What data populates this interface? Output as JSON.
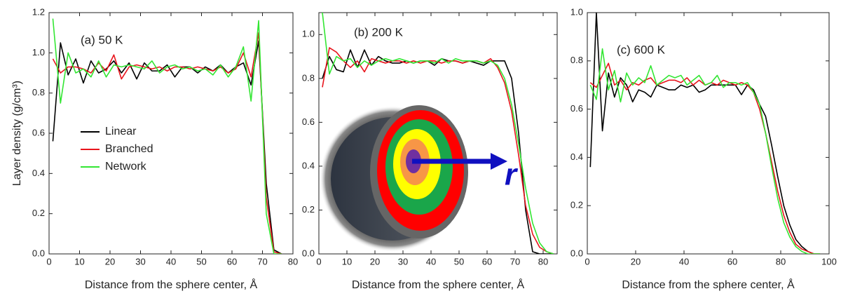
{
  "chart_data": [
    {
      "type": "line",
      "panel_label": "(a) 50 K",
      "xlabel": "Distance from the sphere center, Å",
      "ylabel": "Layer density (g/cm³)",
      "xlim": [
        0,
        80
      ],
      "xticks": [
        0,
        10,
        20,
        30,
        40,
        50,
        60,
        70,
        80
      ],
      "ylim": [
        0,
        1.2
      ],
      "yticks": [
        {
          "value": 0,
          "label": "0.0"
        },
        0.2,
        0.4,
        0.6,
        0.8,
        {
          "value": 1,
          "label": "1.0"
        },
        1.2
      ],
      "legend": "center-left",
      "x": [
        1.25,
        3.75,
        6.25,
        8.75,
        11.25,
        13.75,
        16.25,
        18.75,
        21.25,
        23.75,
        26.25,
        28.75,
        31.25,
        33.75,
        36.25,
        38.75,
        41.25,
        43.75,
        46.25,
        48.75,
        51.25,
        53.75,
        56.25,
        58.75,
        61.25,
        63.75,
        66.25,
        68.75,
        71.25,
        73.75,
        76.25
      ],
      "series": [
        {
          "name": "Linear",
          "color": "#000000",
          "values": [
            0.56,
            1.05,
            0.89,
            0.97,
            0.85,
            0.96,
            0.9,
            0.92,
            0.96,
            0.9,
            0.95,
            0.87,
            0.95,
            0.91,
            0.91,
            0.94,
            0.88,
            0.93,
            0.93,
            0.9,
            0.93,
            0.91,
            0.94,
            0.9,
            0.93,
            0.95,
            0.84,
            1.06,
            0.35,
            0.02,
            0.0
          ]
        },
        {
          "name": "Branched",
          "color": "#e8141c",
          "values": [
            0.97,
            0.9,
            0.93,
            0.93,
            0.92,
            0.9,
            0.95,
            0.91,
            0.99,
            0.87,
            0.93,
            0.94,
            0.93,
            0.92,
            0.93,
            0.91,
            0.93,
            0.93,
            0.92,
            0.93,
            0.92,
            0.91,
            0.93,
            0.9,
            0.92,
            1.0,
            0.88,
            1.1,
            0.28,
            0.01,
            0.0
          ]
        },
        {
          "name": "Network",
          "color": "#33e633",
          "values": [
            1.17,
            0.75,
            1.0,
            0.9,
            0.92,
            0.88,
            0.96,
            0.88,
            0.94,
            0.93,
            0.94,
            0.93,
            0.92,
            0.96,
            0.9,
            0.93,
            0.94,
            0.92,
            0.93,
            0.91,
            0.92,
            0.89,
            0.94,
            0.88,
            0.93,
            1.03,
            0.76,
            1.16,
            0.2,
            0.0,
            0.0
          ]
        }
      ]
    },
    {
      "type": "line",
      "panel_label": "(b) 200 K",
      "xlabel": "Distance from the sphere center, Å",
      "annotation": "r",
      "xlim": [
        0,
        85
      ],
      "xticks": [
        0,
        10,
        20,
        30,
        40,
        50,
        60,
        70,
        80
      ],
      "ylim": [
        0,
        1.1
      ],
      "yticks": [
        {
          "value": 0,
          "label": "0.0"
        },
        0.2,
        0.4,
        0.6,
        0.8,
        {
          "value": 1,
          "label": "1.0"
        }
      ],
      "x": [
        1.25,
        3.75,
        6.25,
        8.75,
        11.25,
        13.75,
        16.25,
        18.75,
        21.25,
        23.75,
        26.25,
        28.75,
        31.25,
        33.75,
        36.25,
        38.75,
        41.25,
        43.75,
        46.25,
        48.75,
        51.25,
        53.75,
        56.25,
        58.75,
        61.25,
        63.75,
        66.25,
        68.75,
        71.25,
        73.75,
        76.25,
        78.75,
        81.25,
        83.75
      ],
      "series": [
        {
          "color": "#000000",
          "values": [
            0.8,
            0.9,
            0.84,
            0.83,
            0.93,
            0.85,
            0.93,
            0.86,
            0.9,
            0.88,
            0.87,
            0.87,
            0.88,
            0.87,
            0.88,
            0.88,
            0.86,
            0.89,
            0.88,
            0.88,
            0.87,
            0.88,
            0.87,
            0.86,
            0.88,
            0.88,
            0.88,
            0.8,
            0.55,
            0.2,
            0.01,
            0.0,
            0.0,
            0.0
          ]
        },
        {
          "color": "#e8141c",
          "values": [
            0.76,
            0.94,
            0.92,
            0.88,
            0.85,
            0.88,
            0.83,
            0.89,
            0.88,
            0.87,
            0.88,
            0.88,
            0.87,
            0.88,
            0.87,
            0.88,
            0.88,
            0.87,
            0.88,
            0.88,
            0.87,
            0.88,
            0.88,
            0.87,
            0.89,
            0.85,
            0.78,
            0.65,
            0.45,
            0.22,
            0.09,
            0.03,
            0.01,
            0.0
          ]
        },
        {
          "color": "#33e633",
          "values": [
            1.1,
            0.82,
            0.9,
            0.88,
            0.89,
            0.85,
            0.88,
            0.86,
            0.88,
            0.89,
            0.88,
            0.89,
            0.88,
            0.87,
            0.88,
            0.88,
            0.87,
            0.89,
            0.87,
            0.89,
            0.88,
            0.88,
            0.88,
            0.87,
            0.88,
            0.86,
            0.8,
            0.68,
            0.5,
            0.3,
            0.14,
            0.05,
            0.01,
            0.0
          ]
        }
      ]
    },
    {
      "type": "line",
      "panel_label": "(c) 600 K",
      "xlabel": "Distance from the sphere center, Å",
      "xlim": [
        0,
        100
      ],
      "xticks": [
        0,
        20,
        40,
        60,
        80,
        100
      ],
      "ylim": [
        0,
        1
      ],
      "yticks": [
        {
          "value": 0,
          "label": "0.0"
        },
        0.2,
        0.4,
        0.6,
        0.8,
        {
          "value": 1,
          "label": "1.0"
        }
      ],
      "x": [
        1.25,
        3.75,
        6.25,
        8.75,
        11.25,
        13.75,
        16.25,
        18.75,
        21.25,
        23.75,
        26.25,
        28.75,
        31.25,
        33.75,
        36.25,
        38.75,
        41.25,
        43.75,
        46.25,
        48.75,
        51.25,
        53.75,
        56.25,
        58.75,
        61.25,
        63.75,
        66.25,
        68.75,
        71.25,
        73.75,
        76.25,
        78.75,
        81.25,
        83.75,
        86.25,
        88.75,
        91.25,
        93.75,
        96.25
      ],
      "series": [
        {
          "color": "#000000",
          "values": [
            0.36,
            1.0,
            0.51,
            0.75,
            0.65,
            0.73,
            0.7,
            0.63,
            0.68,
            0.67,
            0.65,
            0.7,
            0.69,
            0.68,
            0.68,
            0.7,
            0.69,
            0.7,
            0.67,
            0.68,
            0.7,
            0.7,
            0.7,
            0.7,
            0.7,
            0.66,
            0.7,
            0.68,
            0.62,
            0.57,
            0.45,
            0.32,
            0.2,
            0.12,
            0.06,
            0.03,
            0.01,
            0.0,
            0.0
          ]
        },
        {
          "color": "#e8141c",
          "values": [
            0.71,
            0.69,
            0.74,
            0.79,
            0.7,
            0.72,
            0.68,
            0.71,
            0.7,
            0.72,
            0.73,
            0.7,
            0.71,
            0.72,
            0.72,
            0.71,
            0.73,
            0.7,
            0.72,
            0.7,
            0.71,
            0.7,
            0.72,
            0.71,
            0.7,
            0.71,
            0.7,
            0.67,
            0.6,
            0.5,
            0.38,
            0.26,
            0.16,
            0.09,
            0.04,
            0.02,
            0.01,
            0.0,
            0.0
          ]
        },
        {
          "color": "#33e633",
          "values": [
            0.7,
            0.64,
            0.85,
            0.68,
            0.76,
            0.63,
            0.75,
            0.7,
            0.73,
            0.71,
            0.78,
            0.7,
            0.72,
            0.74,
            0.73,
            0.74,
            0.7,
            0.72,
            0.74,
            0.7,
            0.71,
            0.74,
            0.69,
            0.71,
            0.71,
            0.7,
            0.71,
            0.67,
            0.62,
            0.5,
            0.36,
            0.23,
            0.13,
            0.07,
            0.03,
            0.01,
            0.0,
            0.0,
            0.0
          ]
        }
      ]
    }
  ]
}
